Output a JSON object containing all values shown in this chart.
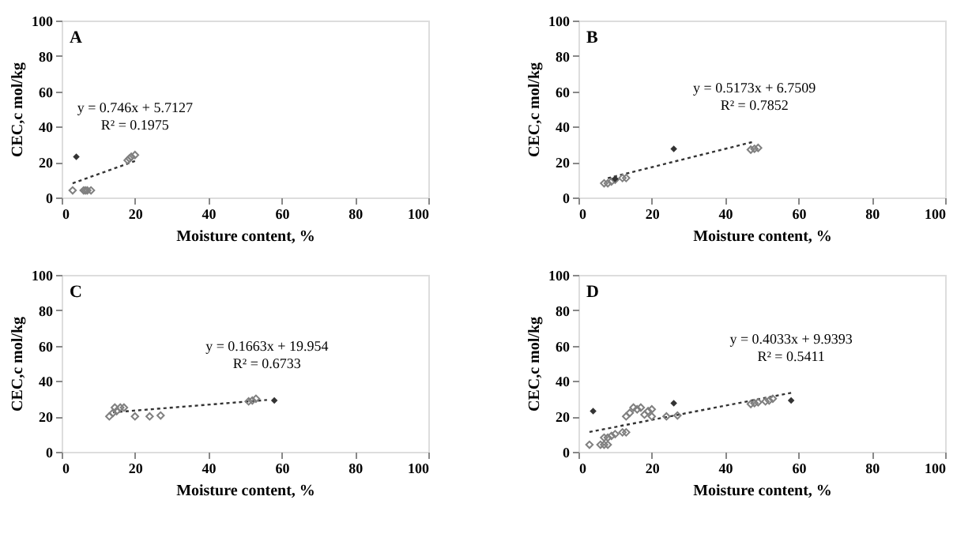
{
  "chart_data": [
    {
      "type": "scatter",
      "xlabel": "Moisture content, %",
      "ylabel": "CEC,c mol/kg",
      "xlim": [
        0,
        100
      ],
      "ylim": [
        0,
        100
      ],
      "xticks": [
        0,
        20,
        40,
        60,
        80,
        100
      ],
      "yticks": [
        0,
        20,
        40,
        60,
        80,
        100
      ],
      "marker": "diamond",
      "annotations": [
        "A",
        "y = 0.746x + 5.7127",
        "R² = 0.1975"
      ],
      "series": [
        {
          "color": "#808080",
          "x": [
            3,
            6,
            6.5,
            7,
            8,
            18,
            18.5,
            19,
            20
          ],
          "values": [
            4,
            4,
            4,
            4,
            4,
            21,
            22,
            23,
            24
          ]
        },
        {
          "color": "#333333",
          "x": [
            4
          ],
          "values": [
            23
          ]
        },
        {
          "type": "line",
          "color": "#333333",
          "line_style": "dotted",
          "marker": "none",
          "x": [
            3,
            20
          ],
          "values": [
            8,
            20.6
          ]
        }
      ]
    },
    {
      "type": "scatter",
      "xlabel": "Moisture content, %",
      "ylabel": "CEC,c mol/kg",
      "xlim": [
        0,
        100
      ],
      "ylim": [
        0,
        100
      ],
      "xticks": [
        0,
        20,
        40,
        60,
        80,
        100
      ],
      "yticks": [
        0,
        20,
        40,
        60,
        80,
        100
      ],
      "marker": "diamond",
      "annotations": [
        "B",
        "y = 0.5173x + 6.7509",
        "R² = 0.7852"
      ],
      "series": [
        {
          "color": "#808080",
          "x": [
            7,
            8,
            9,
            10,
            12,
            13,
            47,
            48,
            49
          ],
          "values": [
            8,
            8,
            9,
            10,
            11,
            11,
            27,
            27.5,
            28
          ]
        },
        {
          "color": "#333333",
          "x": [
            10,
            26
          ],
          "values": [
            10.5,
            27.5
          ]
        },
        {
          "type": "line",
          "color": "#333333",
          "line_style": "dotted",
          "marker": "none",
          "x": [
            8,
            48
          ],
          "values": [
            10.9,
            31.6
          ]
        }
      ]
    },
    {
      "type": "scatter",
      "xlabel": "Moisture content, %",
      "ylabel": "CEC,c mol/kg",
      "xlim": [
        0,
        100
      ],
      "ylim": [
        0,
        100
      ],
      "xticks": [
        0,
        20,
        40,
        60,
        80,
        100
      ],
      "yticks": [
        0,
        20,
        40,
        60,
        80,
        100
      ],
      "marker": "diamond",
      "annotations": [
        "C",
        "y = 0.1663x + 19.954",
        "R² = 0.6733"
      ],
      "series": [
        {
          "color": "#808080",
          "x": [
            13,
            14,
            14.5,
            15,
            16,
            17,
            20,
            24,
            27,
            51,
            52,
            53
          ],
          "values": [
            20,
            22,
            25,
            23,
            25,
            25,
            20,
            20,
            20.5,
            28.5,
            29,
            30
          ]
        },
        {
          "color": "#333333",
          "x": [
            58
          ],
          "values": [
            29
          ]
        },
        {
          "type": "line",
          "color": "#333333",
          "line_style": "dotted",
          "marker": "none",
          "x": [
            14,
            56
          ],
          "values": [
            22.3,
            29.3
          ]
        }
      ]
    },
    {
      "type": "scatter",
      "xlabel": "Moisture content, %",
      "ylabel": "CEC,c mol/kg",
      "xlim": [
        0,
        100
      ],
      "ylim": [
        0,
        100
      ],
      "xticks": [
        0,
        20,
        40,
        60,
        80,
        100
      ],
      "yticks": [
        0,
        20,
        40,
        60,
        80,
        100
      ],
      "marker": "diamond",
      "annotations": [
        "D",
        "y = 0.4033x + 9.9393",
        "R² = 0.5411"
      ],
      "series": [
        {
          "color": "#808080",
          "x": [
            3,
            6,
            7,
            8,
            7,
            8,
            9,
            10,
            12,
            13,
            13,
            14,
            15,
            16,
            17,
            18,
            19,
            20,
            20,
            24,
            27,
            47,
            48,
            49,
            51,
            52,
            53
          ],
          "values": [
            4,
            4,
            4,
            4,
            8,
            8,
            9,
            10,
            11,
            11,
            20,
            22,
            25,
            24,
            25,
            21,
            23,
            24,
            20,
            20,
            20.5,
            27,
            27.5,
            28,
            28.5,
            29,
            30
          ]
        },
        {
          "color": "#333333",
          "x": [
            4,
            26,
            58
          ],
          "values": [
            23,
            27.5,
            29
          ]
        },
        {
          "type": "line",
          "color": "#333333",
          "line_style": "dotted",
          "marker": "none",
          "x": [
            3,
            58
          ],
          "values": [
            11.2,
            33.3
          ]
        }
      ]
    }
  ]
}
